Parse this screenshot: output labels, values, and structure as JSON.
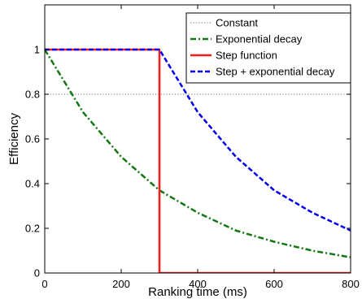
{
  "chart_data": {
    "type": "line",
    "title": "",
    "xlabel": "Ranking time (ms)",
    "ylabel": "Efficiency",
    "xlim": [
      0,
      800
    ],
    "ylim": [
      0,
      1.2
    ],
    "x_ticks": [
      0,
      200,
      400,
      600,
      800
    ],
    "y_ticks": [
      0,
      0.2,
      0.4,
      0.6,
      0.8,
      1
    ],
    "grid": false,
    "legend_position": "top-right",
    "series": [
      {
        "name": "Constant",
        "style": "dotted",
        "color": "#8c8c8c",
        "x": [
          0,
          800
        ],
        "y": [
          0.8,
          0.8
        ]
      },
      {
        "name": "Exponential decay",
        "style": "dash-dot",
        "color": "#117711",
        "x": [
          0,
          100,
          200,
          300,
          400,
          500,
          600,
          700,
          800
        ],
        "y": [
          1.0,
          0.72,
          0.52,
          0.37,
          0.27,
          0.19,
          0.14,
          0.1,
          0.07
        ]
      },
      {
        "name": "Step function",
        "style": "solid",
        "color": "#ff1a1a",
        "x": [
          0,
          300,
          300,
          800
        ],
        "y": [
          1.0,
          1.0,
          0,
          0
        ]
      },
      {
        "name": "Step + exponential decay",
        "style": "dashed",
        "color": "#0000ee",
        "x": [
          0,
          300,
          400,
          500,
          600,
          700,
          800
        ],
        "y": [
          1.0,
          1.0,
          0.72,
          0.52,
          0.37,
          0.27,
          0.19
        ]
      }
    ]
  }
}
